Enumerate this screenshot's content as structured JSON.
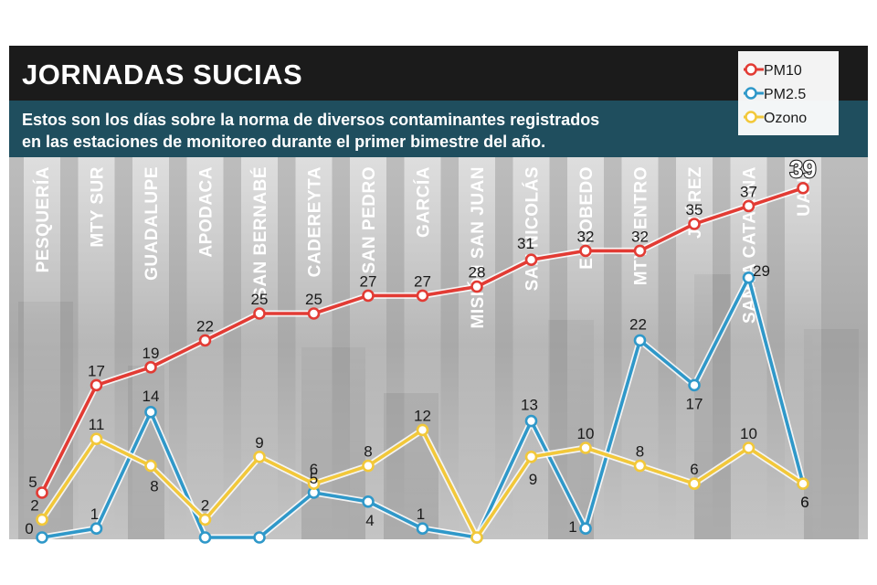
{
  "header": {
    "title": "JORNADAS SUCIAS",
    "subtitle_line1": "Estos son los días sobre la norma de diversos contaminantes registrados",
    "subtitle_line2": "en las estaciones de monitoreo durante el primer bimestre del año."
  },
  "colors": {
    "header_bg": "#1b1b1b",
    "subtitle_bg": "#1f4e5e",
    "pm10": "#e23b34",
    "pm25": "#2f98c9",
    "ozono": "#f2c83a"
  },
  "chart_data": {
    "type": "line",
    "title": "JORNADAS SUCIAS",
    "subtitle": "Estos son los días sobre la norma de diversos contaminantes registrados en las estaciones de monitoreo durante el primer bimestre del año.",
    "categories": [
      "PESQUERÍA",
      "MTY SUR",
      "GUADALUPE",
      "APODACA",
      "SAN BERNABÉ",
      "CADEREYTA",
      "SAN PEDRO",
      "GARCÍA",
      "MISIÓN SAN JUAN",
      "SAN NICOLÁS",
      "ESCOBEDO",
      "MTY CENTRO",
      "JUÁREZ",
      "SANTA CATARINA",
      "UANL"
    ],
    "ylim": [
      0,
      40
    ],
    "grid": false,
    "legend_position": "top-right",
    "series": [
      {
        "name": "PM10",
        "color": "#e23b34",
        "values": [
          5,
          17,
          19,
          22,
          25,
          25,
          27,
          27,
          28,
          31,
          32,
          32,
          35,
          37,
          39
        ]
      },
      {
        "name": "PM2.5",
        "color": "#2f98c9",
        "values": [
          0,
          1,
          14,
          0,
          0,
          5,
          4,
          1,
          0,
          13,
          1,
          22,
          17,
          29,
          6
        ]
      },
      {
        "name": "Ozono",
        "color": "#f2c83a",
        "values": [
          2,
          11,
          8,
          2,
          9,
          6,
          8,
          12,
          0,
          9,
          10,
          8,
          6,
          10,
          6
        ]
      }
    ]
  }
}
